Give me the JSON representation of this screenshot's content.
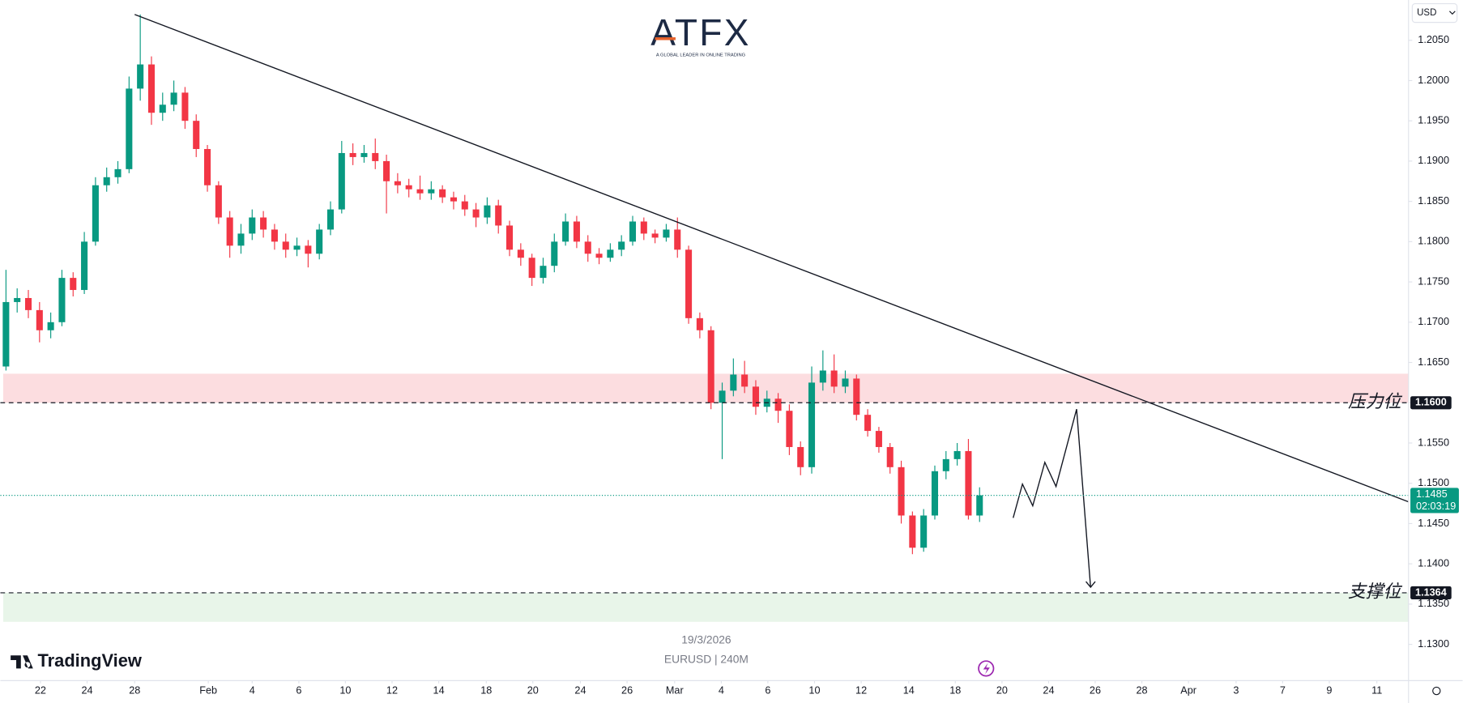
{
  "chart_data": {
    "type": "candlestick",
    "logo": "ATFX",
    "tagline": "A GLOBAL LEADER IN ONLINE TRADING",
    "brand": "TradingView",
    "date": "19/3/2026",
    "symbol": "EURUSD | 240M",
    "currency": "USD",
    "up_color": "#089981",
    "down_color": "#f23645",
    "grid": false,
    "xlim": [
      -0.5,
      125.33
    ],
    "ylim": [
      1.1255,
      1.21
    ],
    "yticks": [
      {
        "value": 1.205,
        "label": "1.2050"
      },
      {
        "value": 1.2,
        "label": "1.2000"
      },
      {
        "value": 1.195,
        "label": "1.1950"
      },
      {
        "value": 1.19,
        "label": "1.1900"
      },
      {
        "value": 1.185,
        "label": "1.1850"
      },
      {
        "value": 1.18,
        "label": "1.1800"
      },
      {
        "value": 1.175,
        "label": "1.1750"
      },
      {
        "value": 1.17,
        "label": "1.1700"
      },
      {
        "value": 1.165,
        "label": "1.1650"
      },
      {
        "value": 1.16,
        "label": "1.1600"
      },
      {
        "value": 1.155,
        "label": "1.1550"
      },
      {
        "value": 1.15,
        "label": "1.1500"
      },
      {
        "value": 1.145,
        "label": "1.1450"
      },
      {
        "value": 1.14,
        "label": "1.1400"
      },
      {
        "value": 1.135,
        "label": "1.1350"
      },
      {
        "value": 1.13,
        "label": "1.1300"
      }
    ],
    "xticks": [
      {
        "value": 3.08,
        "label": "22"
      },
      {
        "value": 7.25,
        "label": "24"
      },
      {
        "value": 11.5,
        "label": "28"
      },
      {
        "value": 18.08,
        "label": "Feb"
      },
      {
        "value": 22,
        "label": "4"
      },
      {
        "value": 26.17,
        "label": "6"
      },
      {
        "value": 30.33,
        "label": "10"
      },
      {
        "value": 34.5,
        "label": "12"
      },
      {
        "value": 38.67,
        "label": "14"
      },
      {
        "value": 42.92,
        "label": "18"
      },
      {
        "value": 47.08,
        "label": "20"
      },
      {
        "value": 51.33,
        "label": "24"
      },
      {
        "value": 55.5,
        "label": "26"
      },
      {
        "value": 59.75,
        "label": "Mar"
      },
      {
        "value": 63.92,
        "label": "4"
      },
      {
        "value": 68.08,
        "label": "6"
      },
      {
        "value": 72.25,
        "label": "10"
      },
      {
        "value": 76.42,
        "label": "12"
      },
      {
        "value": 80.67,
        "label": "14"
      },
      {
        "value": 84.83,
        "label": "18"
      },
      {
        "value": 89,
        "label": "20"
      },
      {
        "value": 93.17,
        "label": "24"
      },
      {
        "value": 97.33,
        "label": "26"
      },
      {
        "value": 101.5,
        "label": "28"
      },
      {
        "value": 105.67,
        "label": "Apr"
      },
      {
        "value": 109.92,
        "label": "3"
      },
      {
        "value": 114.08,
        "label": "7"
      },
      {
        "value": 118.25,
        "label": "9"
      },
      {
        "value": 122.5,
        "label": "11"
      }
    ],
    "open": [
      1.1645,
      1.1725,
      1.173,
      1.1715,
      1.169,
      1.17,
      1.1755,
      1.174,
      1.18,
      1.187,
      1.188,
      1.189,
      1.199,
      1.202,
      1.196,
      1.197,
      1.1985,
      1.195,
      1.1915,
      1.187,
      1.183,
      1.1795,
      1.181,
      1.183,
      1.1815,
      1.18,
      1.179,
      1.1795,
      1.1785,
      1.1815,
      1.184,
      1.191,
      1.1905,
      1.191,
      1.19,
      1.1875,
      1.187,
      1.1865,
      1.186,
      1.1865,
      1.1855,
      1.185,
      1.184,
      1.183,
      1.1845,
      1.182,
      1.179,
      1.178,
      1.1755,
      1.177,
      1.18,
      1.1825,
      1.18,
      1.1785,
      1.178,
      1.179,
      1.18,
      1.1825,
      1.181,
      1.1805,
      1.1815,
      1.179,
      1.1705,
      1.169,
      1.16,
      1.1615,
      1.1635,
      1.162,
      1.1595,
      1.1605,
      1.159,
      1.1545,
      1.152,
      1.1625,
      1.164,
      1.162,
      1.163,
      1.1585,
      1.1565,
      1.1545,
      1.152,
      1.146,
      1.142,
      1.146,
      1.1515,
      1.153,
      1.154,
      1.146
    ],
    "high": [
      1.1765,
      1.1742,
      1.174,
      1.1725,
      1.1712,
      1.1765,
      1.1762,
      1.1812,
      1.188,
      1.1892,
      1.19,
      1.2005,
      1.2082,
      1.203,
      1.1985,
      1.2,
      1.1992,
      1.1958,
      1.192,
      1.1875,
      1.1838,
      1.1822,
      1.184,
      1.1838,
      1.1822,
      1.181,
      1.1805,
      1.1802,
      1.1822,
      1.185,
      1.1925,
      1.1922,
      1.192,
      1.1928,
      1.1908,
      1.1885,
      1.1878,
      1.1882,
      1.1875,
      1.187,
      1.1862,
      1.1858,
      1.1848,
      1.1855,
      1.1852,
      1.1826,
      1.1798,
      1.1785,
      1.178,
      1.181,
      1.1835,
      1.1832,
      1.1808,
      1.1792,
      1.1798,
      1.1808,
      1.1832,
      1.183,
      1.1815,
      1.1822,
      1.183,
      1.1795,
      1.1712,
      1.1695,
      1.1625,
      1.1655,
      1.1652,
      1.1628,
      1.1615,
      1.1612,
      1.1598,
      1.1552,
      1.1645,
      1.1665,
      1.166,
      1.164,
      1.1635,
      1.1592,
      1.157,
      1.155,
      1.1528,
      1.1465,
      1.1468,
      1.1522,
      1.154,
      1.155,
      1.1555,
      1.1495
    ],
    "low": [
      1.164,
      1.1712,
      1.1705,
      1.1675,
      1.168,
      1.1695,
      1.1732,
      1.1735,
      1.1795,
      1.1862,
      1.1872,
      1.1885,
      1.1975,
      1.1945,
      1.195,
      1.1962,
      1.194,
      1.1905,
      1.1862,
      1.1822,
      1.178,
      1.1785,
      1.1802,
      1.1805,
      1.179,
      1.178,
      1.1782,
      1.1768,
      1.1778,
      1.1808,
      1.1835,
      1.1895,
      1.1898,
      1.189,
      1.1835,
      1.186,
      1.1855,
      1.1852,
      1.1852,
      1.1848,
      1.184,
      1.1832,
      1.1818,
      1.1822,
      1.181,
      1.1782,
      1.177,
      1.1745,
      1.1748,
      1.1762,
      1.1795,
      1.1792,
      1.1775,
      1.1772,
      1.1775,
      1.1782,
      1.1795,
      1.1802,
      1.1798,
      1.18,
      1.178,
      1.1698,
      1.168,
      1.1592,
      1.153,
      1.1608,
      1.1612,
      1.1585,
      1.1588,
      1.1575,
      1.1535,
      1.151,
      1.1512,
      1.1615,
      1.1612,
      1.1612,
      1.1578,
      1.1558,
      1.1538,
      1.1512,
      1.145,
      1.1412,
      1.1415,
      1.1455,
      1.1505,
      1.1522,
      1.1455,
      1.1452
    ],
    "close": [
      1.1725,
      1.173,
      1.1715,
      1.169,
      1.17,
      1.1755,
      1.174,
      1.18,
      1.187,
      1.188,
      1.189,
      1.199,
      1.202,
      1.196,
      1.197,
      1.1985,
      1.195,
      1.1915,
      1.187,
      1.183,
      1.1795,
      1.181,
      1.183,
      1.1815,
      1.18,
      1.179,
      1.1795,
      1.1785,
      1.1815,
      1.184,
      1.191,
      1.1905,
      1.191,
      1.19,
      1.1875,
      1.187,
      1.1865,
      1.186,
      1.1865,
      1.1855,
      1.185,
      1.184,
      1.183,
      1.1845,
      1.182,
      1.179,
      1.178,
      1.1755,
      1.177,
      1.18,
      1.1825,
      1.18,
      1.1785,
      1.178,
      1.179,
      1.18,
      1.1825,
      1.181,
      1.1805,
      1.1815,
      1.179,
      1.1705,
      1.169,
      1.16,
      1.1615,
      1.1635,
      1.162,
      1.1595,
      1.1605,
      1.159,
      1.1545,
      1.152,
      1.1625,
      1.164,
      1.162,
      1.163,
      1.1585,
      1.1565,
      1.1545,
      1.152,
      1.146,
      1.142,
      1.146,
      1.1515,
      1.153,
      1.154,
      1.146,
      1.1485
    ],
    "resistance_zone": [
      1.16,
      1.1636
    ],
    "support_zone": [
      1.1328,
      1.1364
    ],
    "levels": [
      {
        "label": "压力位",
        "value": 1.16,
        "value_label": "1.1600"
      },
      {
        "label": "支撑位",
        "value": 1.1364,
        "value_label": "1.1364"
      }
    ],
    "current_price": {
      "value": 1.1485,
      "countdown": "02:03:19"
    },
    "trendline": {
      "x": [
        11.5,
        125.33
      ],
      "y": [
        1.2082,
        1.1477
      ]
    },
    "projection": {
      "x": [
        90,
        90.83,
        91.75,
        92.83,
        93.83,
        95.67,
        96.92
      ],
      "y": [
        1.1457,
        1.1499,
        1.1472,
        1.1526,
        1.1496,
        1.1592,
        1.1371
      ]
    }
  }
}
